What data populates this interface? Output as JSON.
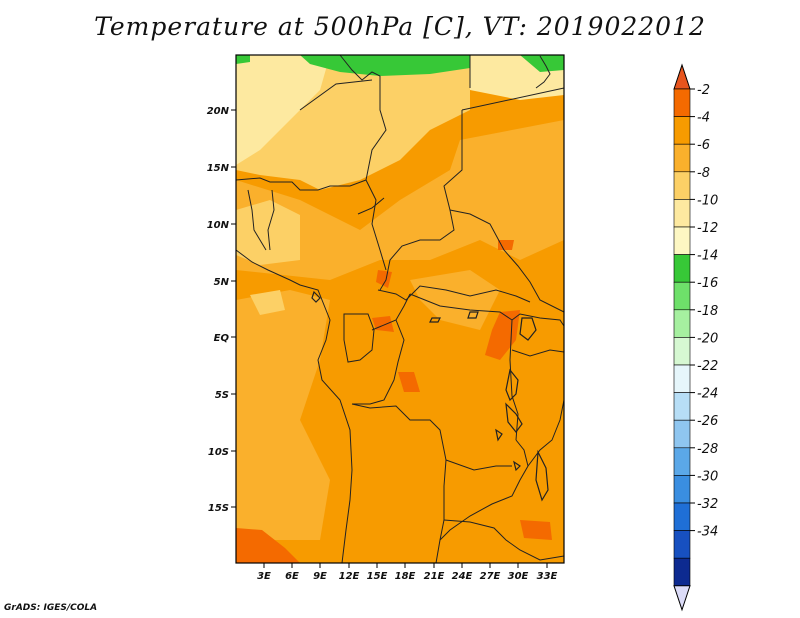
{
  "title": "Temperature at 500hPa [C], VT: 2019022012",
  "credit": "GrADS: IGES/COLA",
  "map": {
    "lon_labels": [
      "3E",
      "6E",
      "9E",
      "12E",
      "15E",
      "18E",
      "21E",
      "24E",
      "27E",
      "30E",
      "33E"
    ],
    "lat_labels": [
      "20N",
      "15N",
      "10N",
      "5N",
      "EQ",
      "5S",
      "10S",
      "15S"
    ]
  },
  "colorbar": {
    "labels": [
      "-2",
      "-4",
      "-6",
      "-8",
      "-10",
      "-12",
      "-14",
      "-16",
      "-18",
      "-20",
      "-22",
      "-24",
      "-26",
      "-28",
      "-30",
      "-32",
      "-34"
    ],
    "colors": [
      "#e8551e",
      "#f46a00",
      "#f79b00",
      "#fab02c",
      "#fcd066",
      "#fde9a0",
      "#fdf7c3",
      "#37c837",
      "#6ee06a",
      "#a6f0a0",
      "#d6f8d2",
      "#e6f6fb",
      "#b7def6",
      "#8fc6f0",
      "#5ba8e8",
      "#3a8ee0",
      "#1f6fd6",
      "#1750c0",
      "#0d2a90",
      "#dcdcf8"
    ]
  }
}
